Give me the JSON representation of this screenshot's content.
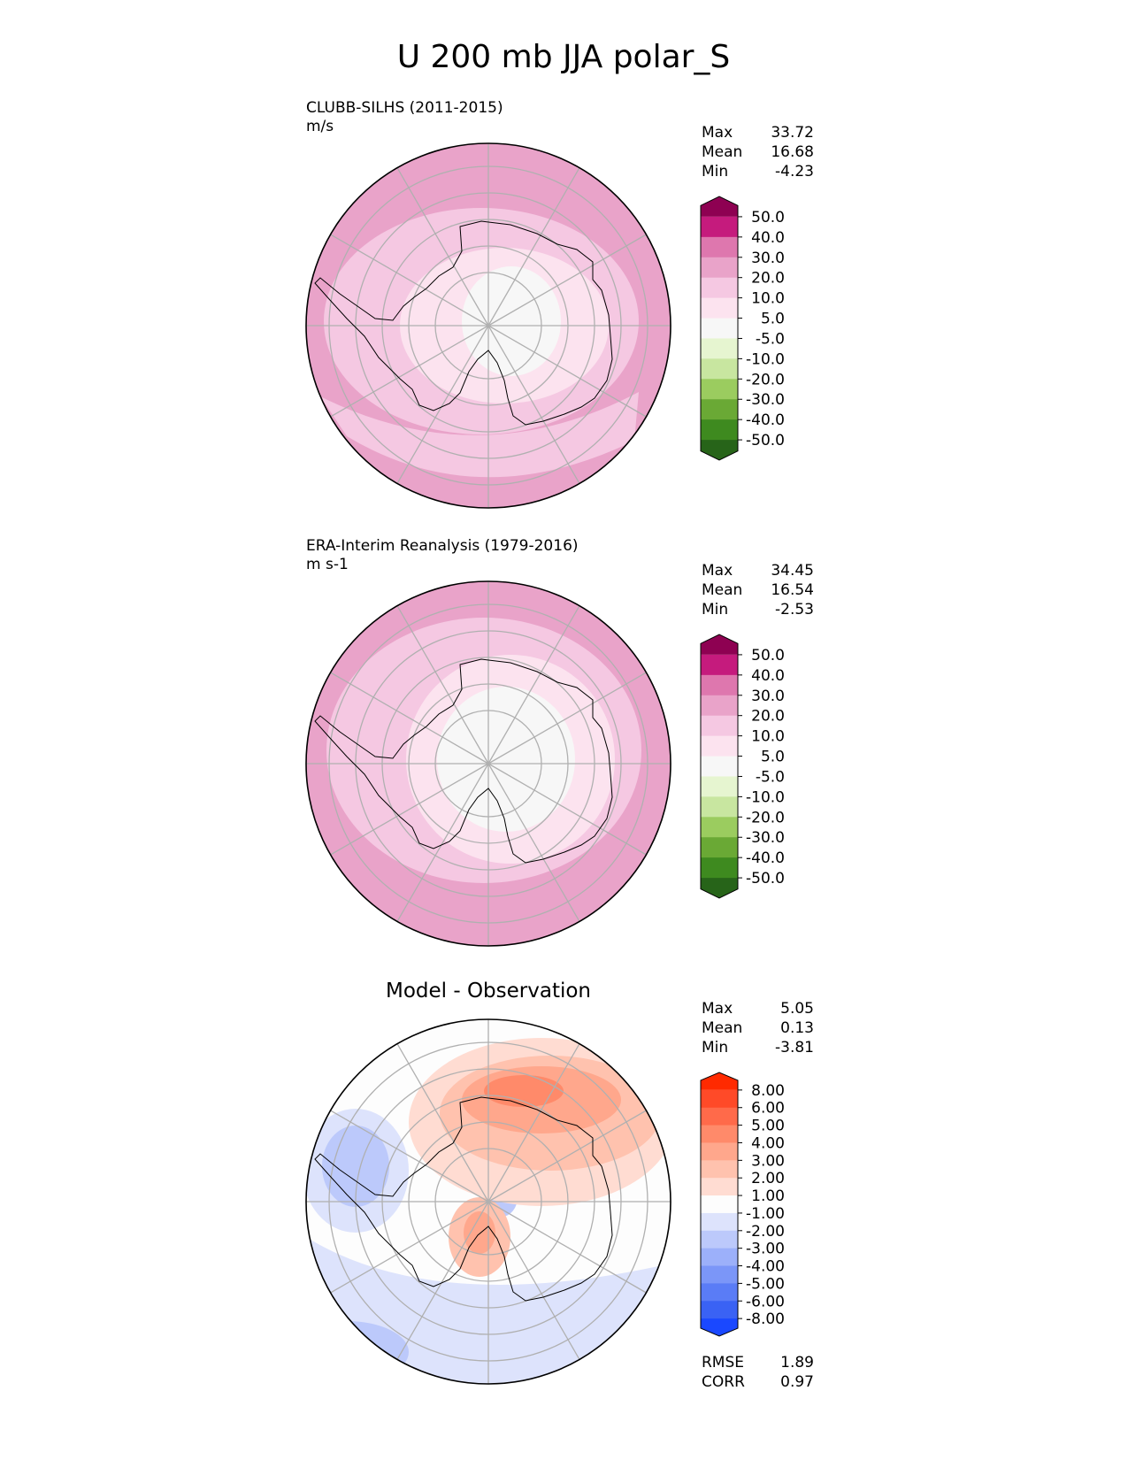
{
  "figure": {
    "title": "U 200 mb JJA polar_S"
  },
  "chart_data": [
    {
      "type": "heatmap",
      "projection": "south-polar-stereographic",
      "title": "",
      "dataset": "CLUBB-SILHS (2011-2015)",
      "units": "m/s",
      "stats": [
        {
          "label": "Max",
          "value": "33.72"
        },
        {
          "label": "Mean",
          "value": "16.68"
        },
        {
          "label": "Min",
          "value": "-4.23"
        }
      ],
      "colorbar": {
        "ticks": [
          "50.0",
          "40.0",
          "30.0",
          "20.0",
          "10.0",
          "5.0",
          "-5.0",
          "-10.0",
          "-20.0",
          "-30.0",
          "-40.0",
          "-50.0"
        ],
        "colors": [
          "#8e0152",
          "#c51b7d",
          "#de77ae",
          "#e9a3c9",
          "#f5c8e2",
          "#fce3ef",
          "#f7f7f7",
          "#e6f5d0",
          "#c8e6a0",
          "#9bcc5f",
          "#6aa935",
          "#3e8a1f",
          "#276419"
        ]
      },
      "field_levels": [
        {
          "band": "30.0 to 40.0",
          "color": "#de77ae"
        },
        {
          "band": "20.0 to 30.0",
          "color": "#e9a3c9"
        },
        {
          "band": "10.0 to 20.0",
          "color": "#f5c8e2"
        },
        {
          "band": "5.0 to 10.0",
          "color": "#fce3ef"
        },
        {
          "band": "-5.0 to 5.0",
          "color": "#f7f7f7"
        }
      ]
    },
    {
      "type": "heatmap",
      "projection": "south-polar-stereographic",
      "title": "",
      "dataset": "ERA-Interim Reanalysis (1979-2016)",
      "units": "m s-1",
      "stats": [
        {
          "label": "Max",
          "value": "34.45"
        },
        {
          "label": "Mean",
          "value": "16.54"
        },
        {
          "label": "Min",
          "value": "-2.53"
        }
      ],
      "colorbar": {
        "ticks": [
          "50.0",
          "40.0",
          "30.0",
          "20.0",
          "10.0",
          "5.0",
          "-5.0",
          "-10.0",
          "-20.0",
          "-30.0",
          "-40.0",
          "-50.0"
        ],
        "colors": [
          "#8e0152",
          "#c51b7d",
          "#de77ae",
          "#e9a3c9",
          "#f5c8e2",
          "#fce3ef",
          "#f7f7f7",
          "#e6f5d0",
          "#c8e6a0",
          "#9bcc5f",
          "#6aa935",
          "#3e8a1f",
          "#276419"
        ]
      },
      "field_levels": [
        {
          "band": "30.0 to 40.0",
          "color": "#de77ae"
        },
        {
          "band": "20.0 to 30.0",
          "color": "#e9a3c9"
        },
        {
          "band": "10.0 to 20.0",
          "color": "#f5c8e2"
        },
        {
          "band": "5.0 to 10.0",
          "color": "#fce3ef"
        },
        {
          "band": "-5.0 to 5.0",
          "color": "#f7f7f7"
        }
      ]
    },
    {
      "type": "heatmap",
      "projection": "south-polar-stereographic",
      "title": "Model - Observation",
      "dataset": "",
      "units": "",
      "stats": [
        {
          "label": "Max",
          "value": "5.05"
        },
        {
          "label": "Mean",
          "value": "0.13"
        },
        {
          "label": "Min",
          "value": "-3.81"
        }
      ],
      "metrics": [
        {
          "label": "RMSE",
          "value": "1.89"
        },
        {
          "label": "CORR",
          "value": "0.97"
        }
      ],
      "colorbar": {
        "ticks": [
          "8.00",
          "6.00",
          "5.00",
          "4.00",
          "3.00",
          "2.00",
          "1.00",
          "-1.00",
          "-2.00",
          "-3.00",
          "-4.00",
          "-5.00",
          "-6.00",
          "-8.00"
        ],
        "colors": [
          "#ff2a00",
          "#ff4a28",
          "#ff6a4a",
          "#ff8a6a",
          "#ffa78c",
          "#ffc2ae",
          "#ffdcd2",
          "#fdfdfd",
          "#dde3fc",
          "#bcc9fb",
          "#9cb0fa",
          "#7b96f8",
          "#5a7cf6",
          "#3a62f4",
          "#1a48ff"
        ]
      },
      "field_levels": [
        {
          "band": "4.00 to 5.00",
          "color": "#ff8a6a"
        },
        {
          "band": "3.00 to 4.00",
          "color": "#ffa78c"
        },
        {
          "band": "2.00 to 3.00",
          "color": "#ffc2ae"
        },
        {
          "band": "1.00 to 2.00",
          "color": "#ffdcd2"
        },
        {
          "band": "-1.00 to 1.00",
          "color": "#fdfdfd"
        },
        {
          "band": "-2.00 to -1.00",
          "color": "#dde3fc"
        },
        {
          "band": "-3.00 to -2.00",
          "color": "#bcc9fb"
        },
        {
          "band": "-4.00 to -3.00",
          "color": "#9cb0fa"
        }
      ]
    }
  ]
}
